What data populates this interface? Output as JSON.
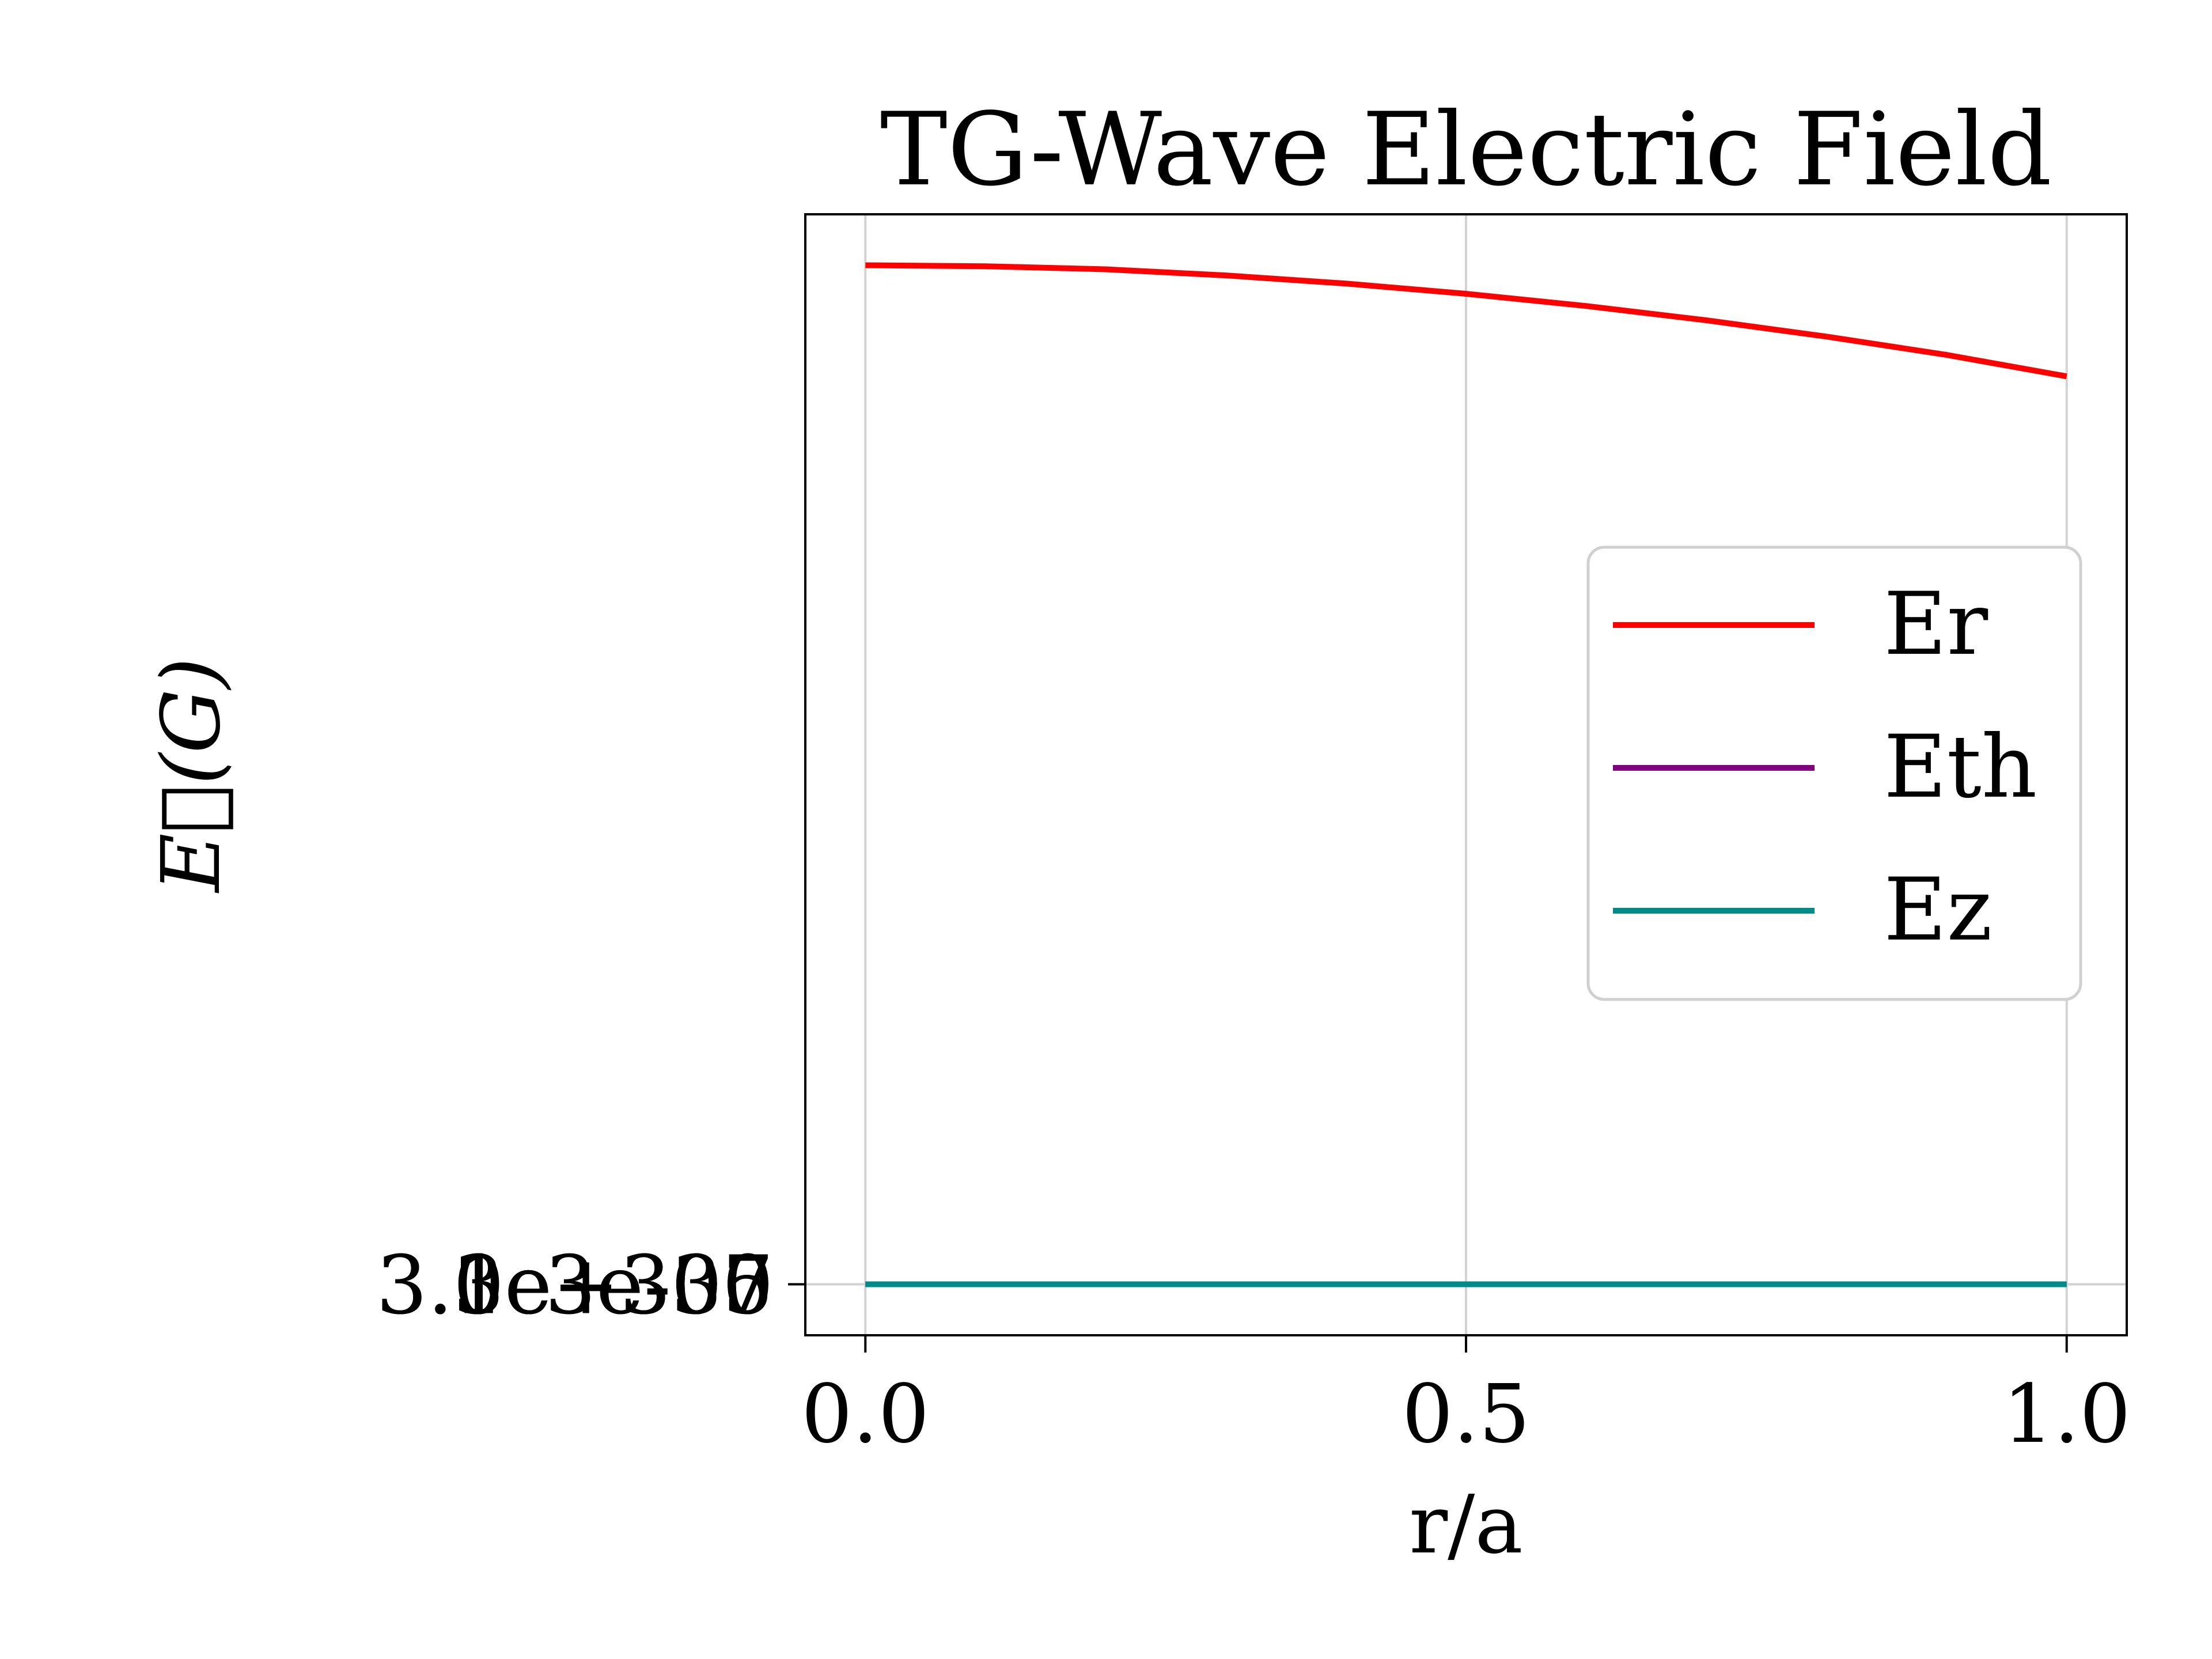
{
  "chart_data": {
    "type": "line",
    "title": "TG-Wave Electric Field",
    "xlabel": "r/a",
    "ylabel": "E⃗(G)",
    "x_ticks": [
      "0.0",
      "0.5",
      "1.0"
    ],
    "y_tick_labels_overlapping": "3e-30 3.0e+300 1e+307 3e+300 3.3e+305",
    "xlim": [
      -0.05,
      1.05
    ],
    "grid": true,
    "legend_position": "right",
    "series": [
      {
        "name": "Er",
        "color": "#ff0000",
        "x": [
          0.0,
          0.1,
          0.2,
          0.3,
          0.4,
          0.5,
          0.6,
          0.7,
          0.8,
          0.9,
          1.0
        ],
        "y": [
          1.0,
          0.999,
          0.996,
          0.99,
          0.982,
          0.972,
          0.96,
          0.946,
          0.93,
          0.912,
          0.891
        ]
      },
      {
        "name": "Eth",
        "color": "#800080",
        "x": [
          0.0,
          1.0
        ],
        "y": [
          0.0,
          0.0
        ]
      },
      {
        "name": "Ez",
        "color": "#008b8b",
        "x": [
          0.0,
          1.0
        ],
        "y": [
          0.0,
          0.0
        ]
      }
    ],
    "ylim": [
      -0.05,
      1.05
    ]
  }
}
